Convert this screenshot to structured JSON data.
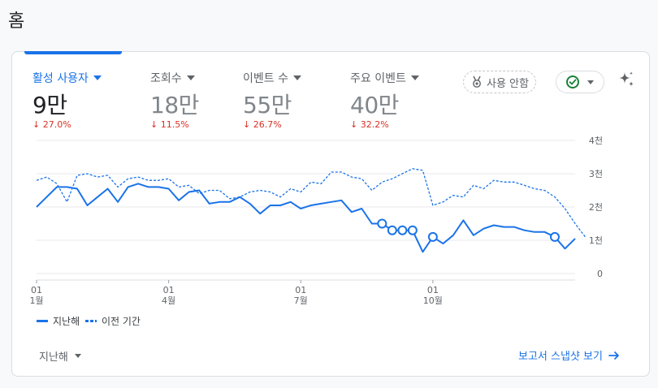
{
  "page": {
    "title": "홈"
  },
  "metrics": [
    {
      "label": "활성 사용자",
      "value": "9만",
      "delta": "27.0%",
      "active": true
    },
    {
      "label": "조회수",
      "value": "18만",
      "delta": "11.5%",
      "active": false
    },
    {
      "label": "이벤트 수",
      "value": "55만",
      "delta": "26.7%",
      "active": false
    },
    {
      "label": "주요 이벤트",
      "value": "40만",
      "delta": "32.2%",
      "active": false
    }
  ],
  "toolbar": {
    "usage_guide_label": "사용 안함",
    "status_icon": "check-circle-icon",
    "insights_icon": "sparkle-icon"
  },
  "legend": {
    "current": "지난해",
    "previous": "이전 기간"
  },
  "footer": {
    "period_label": "지난해",
    "snapshot_link": "보고서 스냅샷 보기"
  },
  "colors": {
    "accent": "#1a73e8",
    "negative": "#d93025",
    "positive": "#188038"
  },
  "chart_data": {
    "type": "line",
    "title": "",
    "xlabel": "",
    "ylabel": "",
    "ylim": [
      0,
      4000
    ],
    "y_tick_labels": [
      "0",
      "1천",
      "2천",
      "3천",
      "4천"
    ],
    "y_ticks": [
      0,
      1000,
      2000,
      3000,
      4000
    ],
    "x_tick_labels": [
      [
        "01",
        "1월"
      ],
      [
        "01",
        "4월"
      ],
      [
        "01",
        "7월"
      ],
      [
        "01",
        "10월"
      ]
    ],
    "x_tick_weeks": [
      0,
      13,
      26,
      39
    ],
    "grid": true,
    "legend_position": "bottom-left",
    "series": [
      {
        "name": "지난해",
        "style": "solid",
        "anomaly_weeks": [
          34,
          35,
          36,
          37,
          39,
          51
        ],
        "values": [
          2000,
          2300,
          2600,
          2600,
          2550,
          2050,
          2300,
          2550,
          2150,
          2600,
          2700,
          2600,
          2600,
          2550,
          2200,
          2450,
          2500,
          2100,
          2150,
          2150,
          2300,
          2100,
          1800,
          2050,
          2050,
          2150,
          1950,
          2050,
          2100,
          2150,
          2200,
          1850,
          1950,
          1500,
          1500,
          1300,
          1300,
          1300,
          650,
          1100,
          900,
          1150,
          1600,
          1150,
          1350,
          1450,
          1400,
          1400,
          1300,
          1250,
          1250,
          1100,
          750,
          1050
        ]
      },
      {
        "name": "이전 기간",
        "style": "dashed",
        "values": [
          2800,
          2900,
          2700,
          2150,
          2950,
          3000,
          2900,
          2950,
          2600,
          2850,
          2900,
          2800,
          2800,
          2850,
          2600,
          2650,
          2400,
          2500,
          2500,
          2250,
          2300,
          2450,
          2500,
          2450,
          2300,
          2550,
          2450,
          2750,
          2700,
          3050,
          3050,
          2900,
          2850,
          2500,
          2750,
          2850,
          3000,
          3150,
          3100,
          2050,
          2150,
          2350,
          2300,
          2650,
          2550,
          2800,
          2750,
          2750,
          2650,
          2550,
          2500,
          2300,
          1950,
          1500,
          1100
        ]
      }
    ]
  }
}
